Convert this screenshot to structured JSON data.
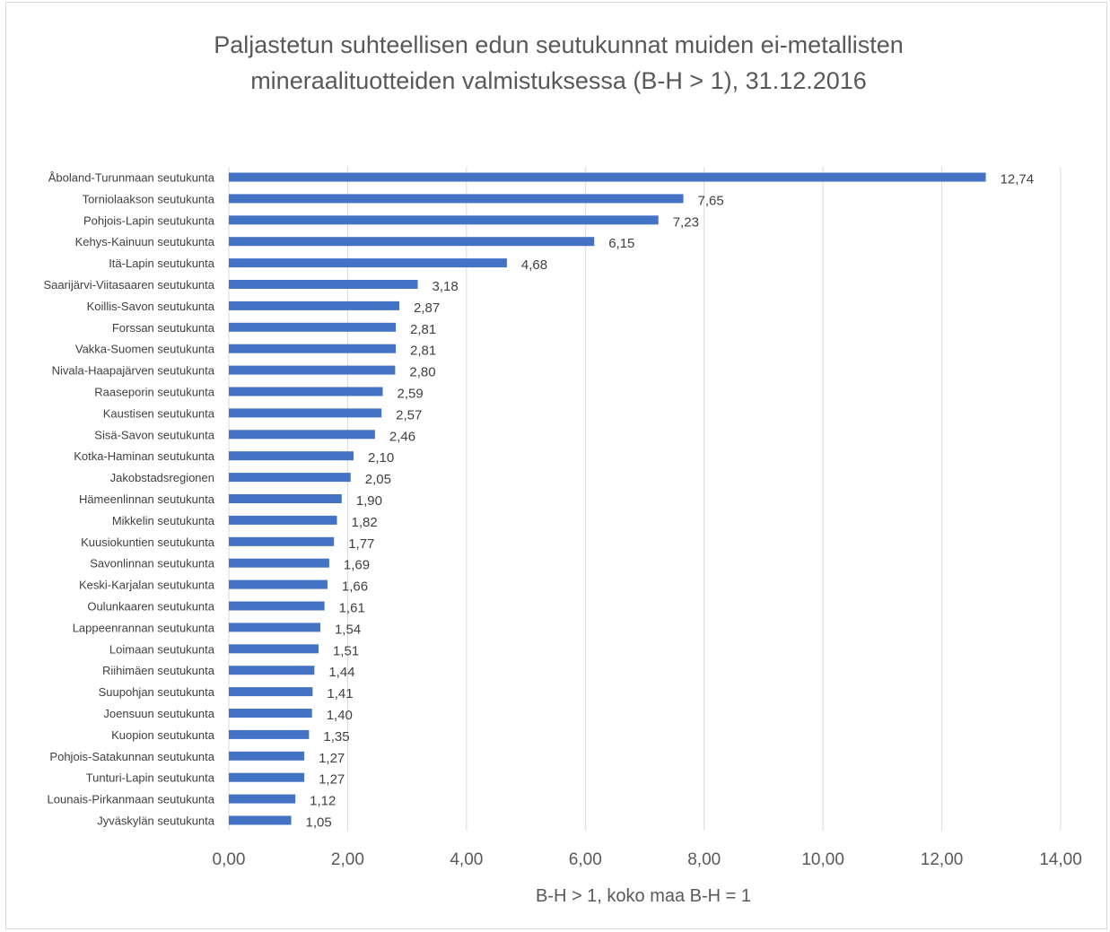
{
  "chart_data": {
    "type": "bar",
    "orientation": "horizontal",
    "title_lines": [
      "Paljastetun suhteellisen edun seutukunnat muiden ei-metallisten",
      "mineraalituotteiden valmistuksessa (B-H > 1), 31.12.2016"
    ],
    "xlabel": "B-H > 1, koko maa B-H = 1",
    "ylabel": "",
    "xlim": [
      0,
      14
    ],
    "x_ticks": [
      0,
      2,
      4,
      6,
      8,
      10,
      12,
      14
    ],
    "x_tick_labels": [
      "0,00",
      "2,00",
      "4,00",
      "6,00",
      "8,00",
      "10,00",
      "12,00",
      "14,00"
    ],
    "grid": true,
    "legend": "none",
    "bar_color": "#4472c4",
    "categories": [
      "Åboland-Turunmaan seutukunta",
      "Torniolaakson seutukunta",
      "Pohjois-Lapin seutukunta",
      "Kehys-Kainuun seutukunta",
      "Itä-Lapin seutukunta",
      "Saarijärvi-Viitasaaren seutukunta",
      "Koillis-Savon seutukunta",
      "Forssan seutukunta",
      "Vakka-Suomen seutukunta",
      "Nivala-Haapajärven seutukunta",
      "Raaseporin seutukunta",
      "Kaustisen seutukunta",
      "Sisä-Savon seutukunta",
      "Kotka-Haminan seutukunta",
      "Jakobstadsregionen",
      "Hämeenlinnan seutukunta",
      "Mikkelin seutukunta",
      "Kuusiokuntien seutukunta",
      "Savonlinnan seutukunta",
      "Keski-Karjalan seutukunta",
      "Oulunkaaren seutukunta",
      "Lappeenrannan seutukunta",
      "Loimaan seutukunta",
      "Riihimäen seutukunta",
      "Suupohjan seutukunta",
      "Joensuun seutukunta",
      "Kuopion seutukunta",
      "Pohjois-Satakunnan seutukunta",
      "Tunturi-Lapin seutukunta",
      "Lounais-Pirkanmaan seutukunta",
      "Jyväskylän seutukunta"
    ],
    "values": [
      12.74,
      7.65,
      7.23,
      6.15,
      4.68,
      3.18,
      2.87,
      2.81,
      2.81,
      2.8,
      2.59,
      2.57,
      2.46,
      2.1,
      2.05,
      1.9,
      1.82,
      1.77,
      1.69,
      1.66,
      1.61,
      1.54,
      1.51,
      1.44,
      1.41,
      1.4,
      1.35,
      1.27,
      1.27,
      1.12,
      1.05
    ],
    "value_labels": [
      "12,74",
      "7,65",
      "7,23",
      "6,15",
      "4,68",
      "3,18",
      "2,87",
      "2,81",
      "2,81",
      "2,80",
      "2,59",
      "2,57",
      "2,46",
      "2,10",
      "2,05",
      "1,90",
      "1,82",
      "1,77",
      "1,69",
      "1,66",
      "1,61",
      "1,54",
      "1,51",
      "1,44",
      "1,41",
      "1,40",
      "1,35",
      "1,27",
      "1,27",
      "1,12",
      "1,05"
    ]
  }
}
